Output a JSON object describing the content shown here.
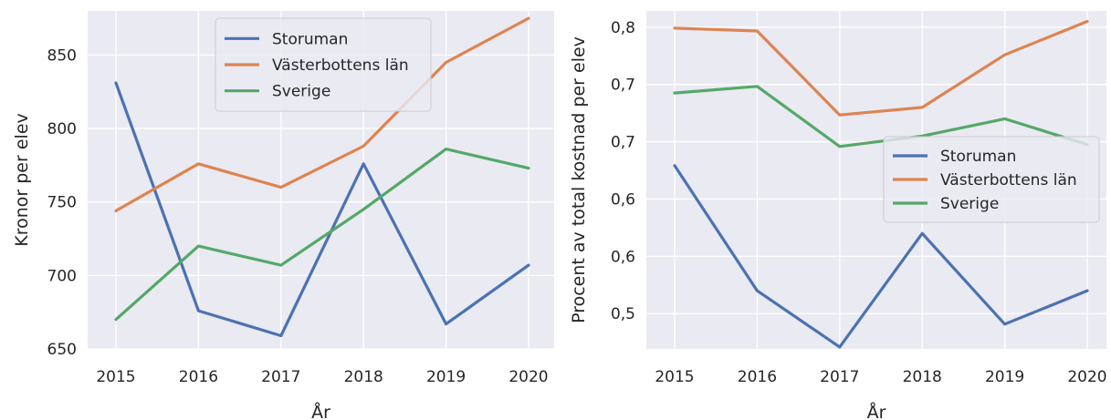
{
  "chart_data": [
    {
      "type": "line",
      "x": [
        "2015",
        "2016",
        "2017",
        "2018",
        "2019",
        "2020"
      ],
      "xlabel": "År",
      "ylabel": "Kronor per elev",
      "ylim": [
        650,
        880
      ],
      "yticks": [
        650,
        700,
        750,
        800,
        850
      ],
      "ytick_labels": [
        "650",
        "700",
        "750",
        "800",
        "850"
      ],
      "grid": true,
      "legend_position": "top-center",
      "series": [
        {
          "name": "Storuman",
          "color": "#4c72b0",
          "values": [
            831,
            676,
            659,
            776,
            667,
            707
          ]
        },
        {
          "name": "Västerbottens län",
          "color": "#dd8452",
          "values": [
            744,
            776,
            760,
            788,
            845,
            875
          ]
        },
        {
          "name": "Sverige",
          "color": "#55a868",
          "values": [
            670,
            720,
            707,
            745,
            786,
            773
          ]
        }
      ]
    },
    {
      "type": "line",
      "x": [
        "2015",
        "2016",
        "2017",
        "2018",
        "2019",
        "2020"
      ],
      "xlabel": "År",
      "ylabel": "Procent av total kostnad per elev",
      "ylim": [
        0.463,
        0.817
      ],
      "yticks": [
        0.5,
        0.56,
        0.62,
        0.68,
        0.74,
        0.8
      ],
      "ytick_labels": [
        "0,5",
        "0,6",
        "0,6",
        "0,7",
        "0,7",
        "0,8"
      ],
      "grid": true,
      "legend_position": "center-right",
      "series": [
        {
          "name": "Storuman",
          "color": "#4c72b0",
          "values": [
            0.655,
            0.524,
            0.465,
            0.584,
            0.489,
            0.524
          ]
        },
        {
          "name": "Västerbottens län",
          "color": "#dd8452",
          "values": [
            0.799,
            0.796,
            0.708,
            0.716,
            0.771,
            0.806
          ]
        },
        {
          "name": "Sverige",
          "color": "#55a868",
          "values": [
            0.731,
            0.738,
            0.675,
            0.686,
            0.704,
            0.677
          ]
        }
      ]
    }
  ]
}
